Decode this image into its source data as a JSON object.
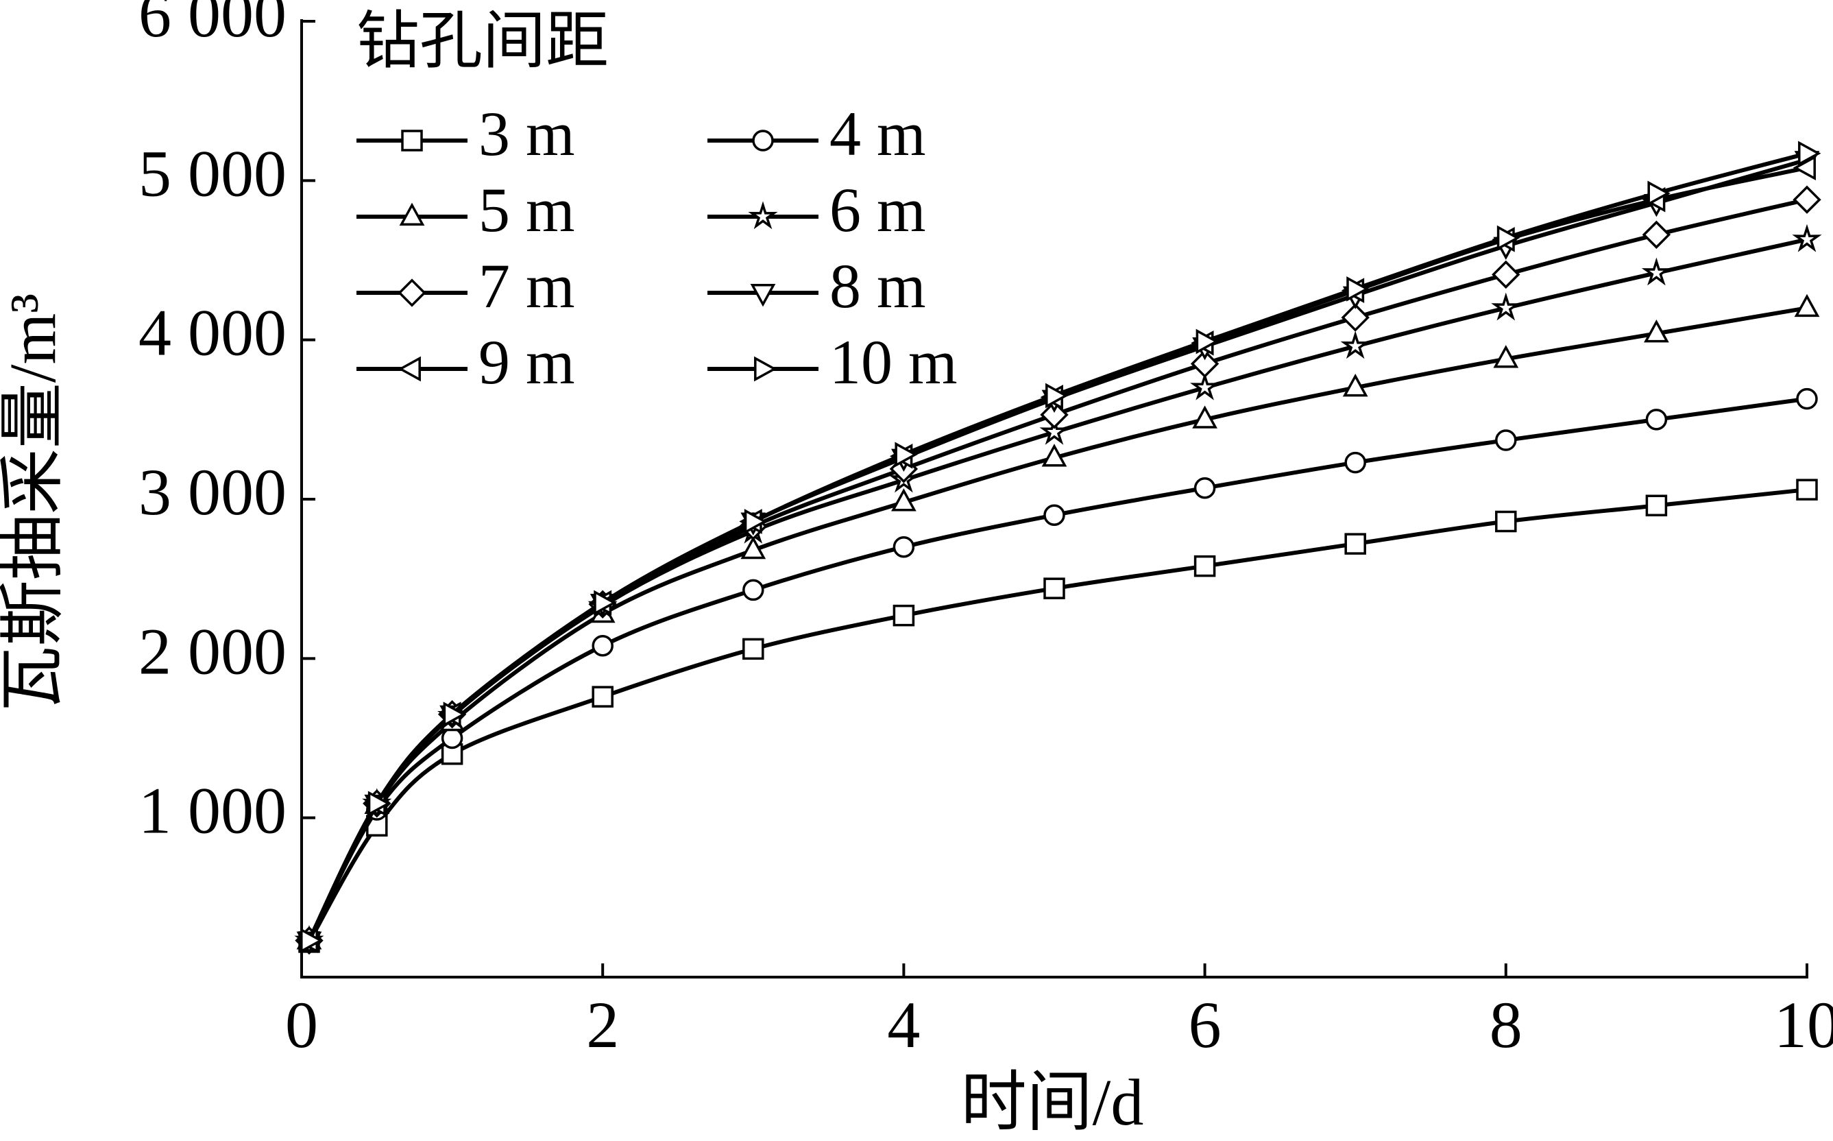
{
  "chart_data": {
    "type": "line",
    "x_label": "时间/d",
    "y_label": "瓦斯抽采量/m³",
    "legend_title": "钻孔间距",
    "x": [
      0.05,
      0.5,
      1,
      2,
      3,
      4,
      5,
      6,
      7,
      8,
      9,
      10
    ],
    "xlim": [
      0,
      10
    ],
    "ylim": [
      0,
      6000
    ],
    "xticks": [
      0,
      2,
      4,
      6,
      8,
      10
    ],
    "yticks": [
      {
        "value": 1000,
        "label": "1 000"
      },
      {
        "value": 2000,
        "label": "2 000"
      },
      {
        "value": 3000,
        "label": "3 000"
      },
      {
        "value": 4000,
        "label": "4 000"
      },
      {
        "value": 5000,
        "label": "5 000"
      },
      {
        "value": 6000,
        "label": "6 000"
      }
    ],
    "series": [
      {
        "name": "3 m",
        "color": "#000000",
        "marker": "square",
        "values": [
          220,
          950,
          1400,
          1760,
          2060,
          2270,
          2440,
          2580,
          2720,
          2860,
          2960,
          3060
        ]
      },
      {
        "name": "4 m",
        "color": "#000000",
        "marker": "circle",
        "values": [
          230,
          1050,
          1500,
          2080,
          2430,
          2700,
          2900,
          3070,
          3230,
          3370,
          3500,
          3630
        ]
      },
      {
        "name": "5 m",
        "color": "#000000",
        "marker": "triangle-up",
        "values": [
          230,
          1080,
          1600,
          2280,
          2680,
          2980,
          3260,
          3500,
          3700,
          3880,
          4040,
          4200
        ]
      },
      {
        "name": "6 m",
        "color": "#000000",
        "marker": "star",
        "values": [
          230,
          1090,
          1640,
          2330,
          2800,
          3120,
          3420,
          3700,
          3960,
          4200,
          4420,
          4630
        ]
      },
      {
        "name": "7 m",
        "color": "#000000",
        "marker": "diamond",
        "values": [
          230,
          1090,
          1650,
          2340,
          2830,
          3190,
          3530,
          3850,
          4140,
          4410,
          4660,
          4880
        ]
      },
      {
        "name": "8 m",
        "color": "#000000",
        "marker": "triangle-down",
        "values": [
          230,
          1090,
          1650,
          2350,
          2860,
          3260,
          3630,
          3960,
          4280,
          4590,
          4860,
          5130
        ]
      },
      {
        "name": "9 m",
        "color": "#000000",
        "marker": "triangle-left",
        "values": [
          230,
          1090,
          1650,
          2350,
          2860,
          3270,
          3640,
          3980,
          4310,
          4630,
          4880,
          5080
        ]
      },
      {
        "name": "10 m",
        "color": "#000000",
        "marker": "triangle-right",
        "values": [
          230,
          1090,
          1650,
          2350,
          2860,
          3280,
          3650,
          3990,
          4320,
          4640,
          4920,
          5170
        ]
      }
    ]
  }
}
